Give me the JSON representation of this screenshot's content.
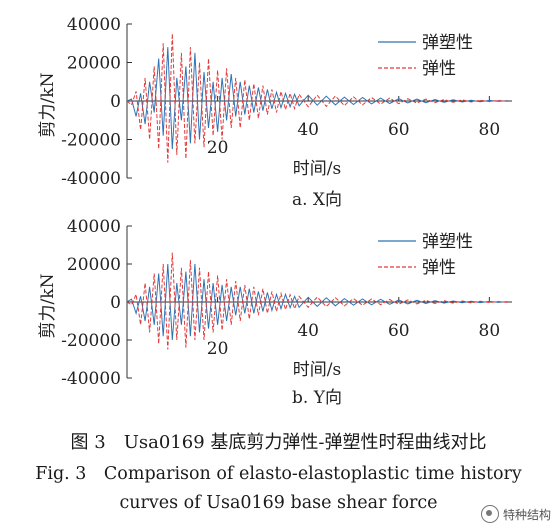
{
  "chart_data": [
    {
      "type": "line",
      "subtitle": "a. X向",
      "xlabel": "时间/s",
      "ylabel": "剪力/kN",
      "xlim": [
        0,
        85
      ],
      "ylim": [
        -40000,
        40000
      ],
      "xticks": [
        20,
        40,
        60,
        80
      ],
      "yticks": [
        -40000,
        -20000,
        0,
        20000,
        40000
      ],
      "legend_position": "top-right",
      "grid": false,
      "series": [
        {
          "name": "弹塑性",
          "color": "#2f73b5",
          "style": "solid",
          "x": [
            0,
            1,
            2,
            3,
            4,
            5,
            6,
            7,
            8,
            9,
            10,
            11,
            12,
            13,
            14,
            15,
            16,
            17,
            18,
            19,
            20,
            21,
            22,
            23,
            24,
            25,
            26,
            27,
            28,
            29,
            30,
            31,
            32,
            33,
            34,
            35,
            36,
            37,
            38,
            40,
            42,
            44,
            46,
            48,
            50,
            52,
            54,
            56,
            58,
            60,
            62,
            64,
            66,
            68,
            70,
            72,
            74,
            76,
            78,
            80,
            82,
            84
          ],
          "y": [
            0,
            1000,
            -8000,
            4000,
            -12000,
            10000,
            -6000,
            22000,
            -18000,
            28000,
            -25000,
            12000,
            -10000,
            18000,
            -22000,
            25000,
            -20000,
            15000,
            -14000,
            10000,
            -16000,
            12000,
            -10000,
            14000,
            -8000,
            10000,
            -7000,
            8000,
            -6000,
            7000,
            -5000,
            6000,
            -4000,
            4500,
            -3500,
            4000,
            -3000,
            3500,
            -2500,
            3000,
            -2200,
            2500,
            -2000,
            2000,
            -1800,
            1800,
            -1500,
            1500,
            -1300,
            1200,
            -1000,
            1000,
            -900,
            800,
            -700,
            600,
            -500,
            400,
            -400,
            300,
            -200,
            200
          ]
        },
        {
          "name": "弹性",
          "color": "#e23a3a",
          "style": "dashed",
          "x": [
            0,
            1,
            2,
            3,
            4,
            5,
            6,
            7,
            8,
            9,
            10,
            11,
            12,
            13,
            14,
            15,
            16,
            17,
            18,
            19,
            20,
            21,
            22,
            23,
            24,
            25,
            26,
            27,
            28,
            29,
            30,
            31,
            32,
            33,
            34,
            35,
            36,
            37,
            38,
            40,
            42,
            44,
            46,
            48,
            50,
            52,
            54,
            56,
            58,
            60,
            62,
            64,
            66,
            68,
            70,
            72,
            74,
            76,
            78,
            80,
            82,
            84
          ],
          "y": [
            0,
            -2000,
            5000,
            -15000,
            12000,
            -20000,
            18000,
            -25000,
            30000,
            -32000,
            35000,
            -28000,
            25000,
            -30000,
            28000,
            -22000,
            20000,
            -24000,
            22000,
            -18000,
            16000,
            -20000,
            17000,
            -14000,
            12000,
            -14000,
            11000,
            -10000,
            9000,
            -9000,
            8000,
            -7000,
            6000,
            -6000,
            5000,
            -4500,
            4000,
            -4000,
            3500,
            -3000,
            3000,
            -2800,
            2600,
            -2400,
            2200,
            -2000,
            1800,
            -1600,
            1500,
            -1400,
            1200,
            -1100,
            1000,
            -900,
            800,
            -700,
            600,
            -500,
            400,
            -300,
            300,
            -200
          ]
        }
      ]
    },
    {
      "type": "line",
      "subtitle": "b. Y向",
      "xlabel": "时间/s",
      "ylabel": "剪力/kN",
      "xlim": [
        0,
        85
      ],
      "ylim": [
        -40000,
        40000
      ],
      "xticks": [
        20,
        40,
        60,
        80
      ],
      "yticks": [
        -40000,
        -20000,
        0,
        20000,
        40000
      ],
      "legend_position": "top-right",
      "grid": false,
      "series": [
        {
          "name": "弹塑性",
          "color": "#2f73b5",
          "style": "solid",
          "x": [
            0,
            1,
            2,
            3,
            4,
            5,
            6,
            7,
            8,
            9,
            10,
            11,
            12,
            13,
            14,
            15,
            16,
            17,
            18,
            19,
            20,
            21,
            22,
            23,
            24,
            25,
            26,
            27,
            28,
            29,
            30,
            31,
            32,
            33,
            34,
            35,
            36,
            37,
            38,
            40,
            42,
            44,
            46,
            48,
            50,
            52,
            54,
            56,
            58,
            60,
            62,
            64,
            66,
            68,
            70,
            72,
            74,
            76,
            78,
            80,
            82,
            84
          ],
          "y": [
            0,
            1500,
            -6000,
            3000,
            -10000,
            8000,
            -12000,
            15000,
            -18000,
            20000,
            -20000,
            10000,
            -12000,
            16000,
            -18000,
            20000,
            -16000,
            12000,
            -14000,
            10000,
            -12000,
            9000,
            -10000,
            8000,
            -7000,
            8000,
            -6000,
            7000,
            -6000,
            5500,
            -5000,
            5000,
            -4500,
            4000,
            -3500,
            4000,
            -3000,
            3000,
            -2800,
            2500,
            -2300,
            2200,
            -2000,
            1800,
            -1700,
            1600,
            -1500,
            1400,
            -1200,
            1100,
            -1000,
            900,
            -800,
            700,
            -600,
            500,
            -400,
            400,
            -300,
            300,
            -200,
            200
          ]
        },
        {
          "name": "弹性",
          "color": "#e23a3a",
          "style": "dashed",
          "x": [
            0,
            1,
            2,
            3,
            4,
            5,
            6,
            7,
            8,
            9,
            10,
            11,
            12,
            13,
            14,
            15,
            16,
            17,
            18,
            19,
            20,
            21,
            22,
            23,
            24,
            25,
            26,
            27,
            28,
            29,
            30,
            31,
            32,
            33,
            34,
            35,
            36,
            37,
            38,
            40,
            42,
            44,
            46,
            48,
            50,
            52,
            54,
            56,
            58,
            60,
            62,
            64,
            66,
            68,
            70,
            72,
            74,
            76,
            78,
            80,
            82,
            84
          ],
          "y": [
            0,
            -1500,
            4000,
            -12000,
            10000,
            -16000,
            15000,
            -22000,
            20000,
            -25000,
            26000,
            -20000,
            18000,
            -24000,
            22000,
            -20000,
            18000,
            -20000,
            16000,
            -16000,
            14000,
            -15000,
            12000,
            -12000,
            11000,
            -10000,
            9000,
            -9000,
            8000,
            -7000,
            7000,
            -6000,
            5500,
            -5000,
            4500,
            -4000,
            3800,
            -3500,
            3000,
            -2800,
            2600,
            -2400,
            2200,
            -2000,
            1800,
            -1700,
            1600,
            -1400,
            1300,
            -1200,
            1100,
            -1000,
            900,
            -800,
            700,
            -600,
            500,
            -450,
            400,
            -300,
            250,
            -200
          ]
        }
      ]
    }
  ],
  "caption": {
    "cn": "图 3　Usa0169 基底剪力弹性-弹塑性时程曲线对比",
    "en1": "Fig. 3　Comparison of elasto-elastoplastic time history",
    "en2": "curves of Usa0169 base shear force"
  },
  "watermark": {
    "text": "特种结构",
    "icon": "wechat-logo-icon"
  }
}
